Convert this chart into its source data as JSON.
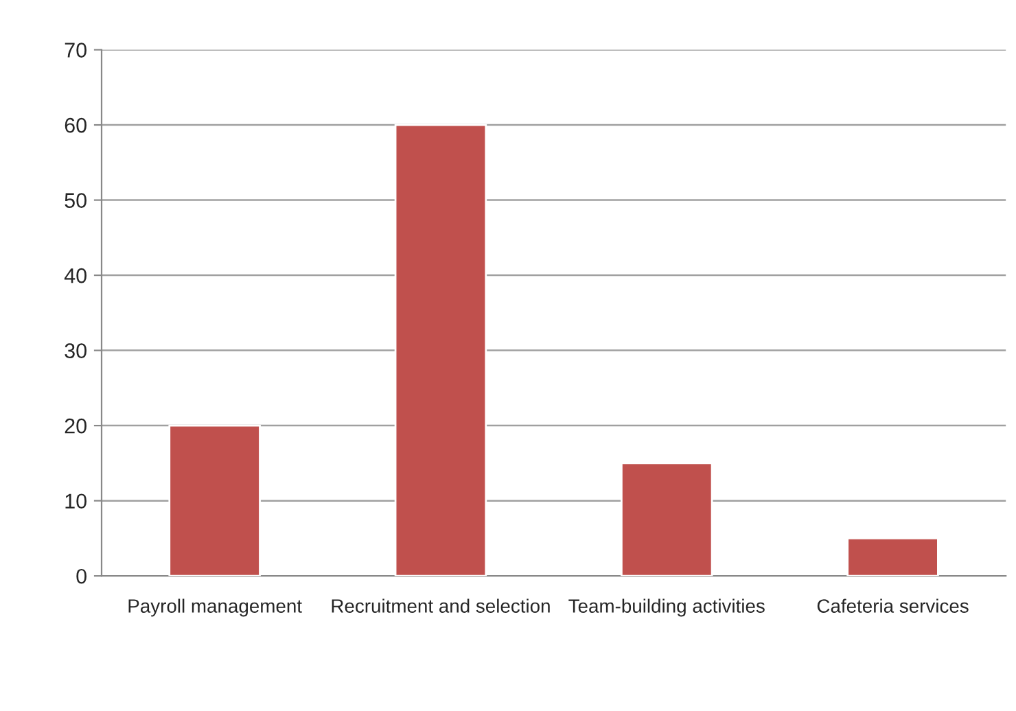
{
  "chart_data": {
    "type": "bar",
    "categories": [
      "Payroll management",
      "Recruitment and selection",
      "Team-building activities",
      "Cafeteria services"
    ],
    "values": [
      20,
      60,
      15,
      5
    ],
    "color": "#c0504d",
    "ylim": [
      0,
      70
    ],
    "yticks": [
      0,
      10,
      20,
      30,
      40,
      50,
      60,
      70
    ],
    "grid": "y",
    "legend": false
  }
}
